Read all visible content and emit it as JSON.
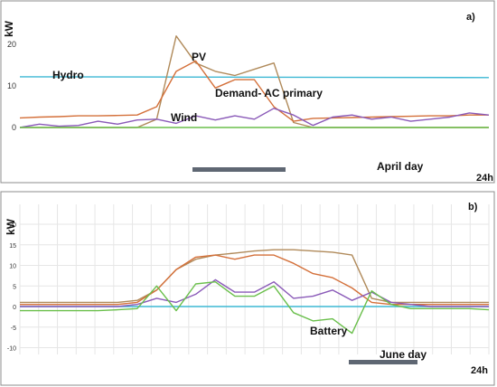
{
  "chart_data": [
    {
      "type": "line",
      "panel_label": "a)",
      "ylabel": "kW",
      "yticks": [
        0,
        10,
        20
      ],
      "ylim": [
        -10,
        25
      ],
      "xlim": [
        0,
        24
      ],
      "end_label": "24h",
      "grid": false,
      "period_label": "April day",
      "series_labels": {
        "hydro": "Hydro",
        "pv": "PV",
        "demand": "Demand- AC primary",
        "wind": "Wind"
      },
      "series": [
        {
          "key": "hydro",
          "color": "#3db8d4",
          "x": [
            0,
            24
          ],
          "values": [
            12.2,
            12.0
          ]
        },
        {
          "key": "pv",
          "color": "#b08a5a",
          "x": [
            0,
            1,
            2,
            3,
            4,
            5,
            6,
            7,
            8,
            9,
            10,
            11,
            12,
            13,
            14,
            15,
            16,
            17,
            18,
            19,
            20,
            21,
            22,
            23,
            24
          ],
          "values": [
            0,
            0,
            0,
            0,
            0,
            0,
            0,
            2,
            22,
            15.5,
            13.5,
            12.5,
            14,
            15.5,
            1.2,
            0,
            0,
            0,
            0,
            0,
            0,
            0,
            0,
            0,
            0
          ]
        },
        {
          "key": "demand",
          "color": "#d4703a",
          "x": [
            0,
            1,
            2,
            3,
            4,
            5,
            6,
            7,
            8,
            9,
            10,
            11,
            12,
            13,
            14,
            15,
            16,
            17,
            18,
            19,
            20,
            21,
            22,
            23,
            24
          ],
          "values": [
            2.3,
            2.5,
            2.6,
            2.8,
            2.8,
            2.9,
            3,
            5,
            13.5,
            16,
            9.5,
            11.5,
            11.5,
            5,
            1.5,
            2.2,
            2.3,
            2.4,
            2.5,
            2.6,
            2.7,
            2.8,
            2.8,
            3,
            3
          ]
        },
        {
          "key": "wind",
          "color": "#8a5ab8",
          "x": [
            0,
            1,
            2,
            3,
            4,
            5,
            6,
            7,
            8,
            9,
            10,
            11,
            12,
            13,
            14,
            15,
            16,
            17,
            18,
            19,
            20,
            21,
            22,
            23,
            24
          ],
          "values": [
            0,
            0.8,
            0.3,
            0.5,
            1.5,
            0.8,
            1.8,
            2,
            1,
            2.8,
            1.8,
            2.8,
            2,
            4.6,
            3,
            0.5,
            2.5,
            3,
            2,
            2.5,
            1.5,
            2,
            2.5,
            3.5,
            3
          ]
        },
        {
          "key": "zero",
          "color": "#6abf4b",
          "x": [
            0,
            24
          ],
          "values": [
            0,
            0
          ]
        }
      ]
    },
    {
      "type": "line",
      "panel_label": "b)",
      "ylabel": "kW",
      "yticks": [
        -10,
        -5,
        0,
        5,
        10,
        15,
        20
      ],
      "ylim": [
        -10,
        21
      ],
      "xlim": [
        0,
        24
      ],
      "end_label": "24h",
      "grid": true,
      "period_label": "June day",
      "series_labels": {
        "battery": "Battery"
      },
      "series": [
        {
          "key": "hydro",
          "color": "#3db8d4",
          "x": [
            0,
            24
          ],
          "values": [
            0,
            0
          ]
        },
        {
          "key": "pv",
          "color": "#b08a5a",
          "x": [
            0,
            1,
            2,
            3,
            4,
            5,
            6,
            7,
            8,
            9,
            10,
            11,
            12,
            13,
            14,
            15,
            16,
            17,
            18,
            19,
            20,
            21,
            22,
            23,
            24
          ],
          "values": [
            1,
            1,
            1,
            1,
            1,
            1,
            1.5,
            4,
            9,
            11.5,
            12.5,
            13,
            13.5,
            13.8,
            13.8,
            13.5,
            13.2,
            12.5,
            2,
            1,
            1,
            1,
            1,
            1,
            1
          ]
        },
        {
          "key": "demand",
          "color": "#d4703a",
          "x": [
            0,
            1,
            2,
            3,
            4,
            5,
            6,
            7,
            8,
            9,
            10,
            11,
            12,
            13,
            14,
            15,
            16,
            17,
            18,
            19,
            20,
            21,
            22,
            23,
            24
          ],
          "values": [
            0.5,
            0.5,
            0.5,
            0.5,
            0.5,
            0.5,
            1,
            4,
            9,
            12,
            12.5,
            11.5,
            12.5,
            12.5,
            10.5,
            8,
            7,
            4.5,
            1,
            0.5,
            0.5,
            0.5,
            0.5,
            0.5,
            0.5
          ]
        },
        {
          "key": "wind",
          "color": "#8a5ab8",
          "x": [
            0,
            1,
            2,
            3,
            4,
            5,
            6,
            7,
            8,
            9,
            10,
            11,
            12,
            13,
            14,
            15,
            16,
            17,
            18,
            19,
            20,
            21,
            22,
            23,
            24
          ],
          "values": [
            0,
            0,
            0,
            0,
            0,
            0,
            0.5,
            2,
            1,
            3,
            6.5,
            3.5,
            3.5,
            6,
            2,
            2.5,
            4,
            1.5,
            3.5,
            1,
            0.5,
            0,
            0,
            0,
            0
          ]
        },
        {
          "key": "battery",
          "color": "#6abf4b",
          "x": [
            0,
            1,
            2,
            3,
            4,
            5,
            6,
            7,
            8,
            9,
            10,
            11,
            12,
            13,
            14,
            15,
            16,
            17,
            18,
            19,
            20,
            21,
            22,
            23,
            24
          ],
          "values": [
            -1,
            -1,
            -1,
            -1,
            -1,
            -0.8,
            -0.5,
            5,
            -1,
            5.5,
            6,
            2.5,
            2.5,
            5,
            -1.5,
            -3.5,
            -3,
            -6.5,
            3.8,
            0.5,
            -0.5,
            -0.5,
            -0.5,
            -0.5,
            -0.8
          ]
        }
      ]
    }
  ]
}
